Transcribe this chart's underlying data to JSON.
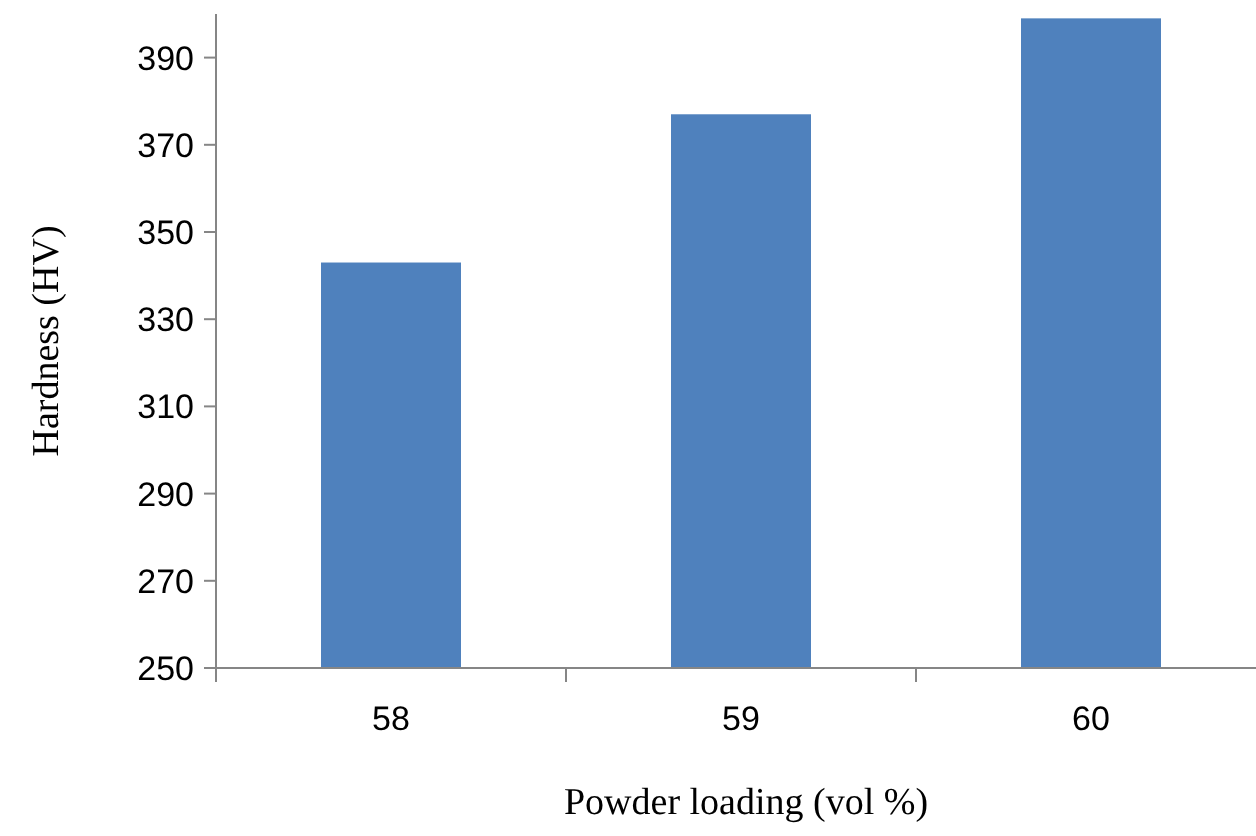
{
  "chart_data": {
    "type": "bar",
    "xlabel": "Powder loading (vol %)",
    "ylabel": "Hardness (HV)",
    "categories": [
      "58",
      "59",
      "60"
    ],
    "values": [
      343,
      377,
      399
    ],
    "color": "#4f81bd",
    "ylim": [
      250,
      400
    ],
    "yticks": [
      250,
      270,
      290,
      310,
      330,
      350,
      370,
      390
    ],
    "grid": false
  }
}
